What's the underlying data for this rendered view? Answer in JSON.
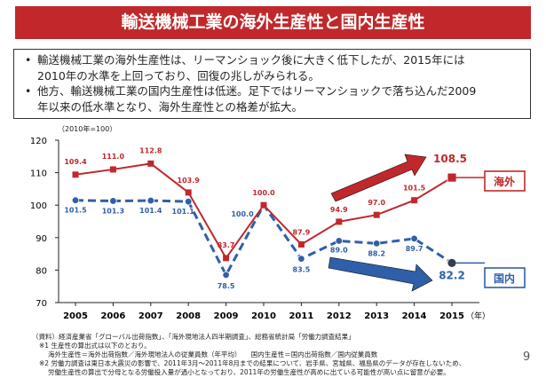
{
  "title": "輸送機械工業の海外生産性と国内生産性",
  "bullets": [
    {
      "line1": "輸送機械工業の海外生産性は、リーマンショック後に大きく低下したが、2015年には",
      "line2": "2010年の水準を上回っており、回復の兆しがみられる。"
    },
    {
      "line1": "他方、輸送機械工業の国内生産性は低迷。足下ではリーマンショックで落ち込んだ2009",
      "line2": "年以来の低水準となり、海外生産性との格差が拡大。"
    }
  ],
  "bullet_marker": "•",
  "unit_note": "（2010年=100）",
  "chart_data": {
    "type": "line",
    "x": [
      "2005",
      "2006",
      "2007",
      "2008",
      "2009",
      "2010",
      "2011",
      "2012",
      "2013",
      "2014",
      "2015"
    ],
    "x_suffix": "（年）",
    "ylim": [
      70,
      120
    ],
    "yticks": [
      "70",
      "80",
      "90",
      "100",
      "110",
      "120"
    ],
    "grid": false,
    "series": [
      {
        "name": "海外",
        "color": "#c0282b",
        "style": "solid",
        "values": [
          109.4,
          111.0,
          112.8,
          103.9,
          83.7,
          100.0,
          87.9,
          94.9,
          97.0,
          101.5,
          108.5
        ],
        "labels": [
          "109.4",
          "111.0",
          "112.8",
          "103.9",
          "83.7",
          "100.0",
          "87.9",
          "94.9",
          "97.0",
          "101.5",
          "108.5"
        ]
      },
      {
        "name": "国内",
        "color": "#2f5fa8",
        "style": "dashed",
        "values": [
          101.5,
          101.3,
          101.4,
          101.1,
          78.5,
          100.0,
          83.5,
          89.0,
          88.2,
          89.7,
          82.2
        ],
        "labels": [
          "101.5",
          "101.3",
          "101.4",
          "101.1",
          "78.5",
          "100.0",
          "83.5",
          "89.0",
          "88.2",
          "89.7",
          "82.2"
        ]
      }
    ]
  },
  "footnotes": [
    "（資料）経済産業省「グローバル出荷指数」、「海外現地法人四半期調査」、総務省統計局「労働力調査結果」",
    "※1 生産性の算出式は以下のとおり。",
    "海外生産性＝海外出荷指数／海外現地法人の従業員数（年平均）　　国内生産性＝国内出荷指数／国内従業員数",
    "※2 労働力調査は東日本大震災の影響で、2011年3月〜2011年8月までの結果について、岩手県、宮城県、福島県のデータが存在しないため、",
    "労働生産性の算出で分母となる労働投入量が過小となっており、2011年の労働生産性が高めに出ている可能性が高い点に留意が必要。"
  ],
  "page_number": "9",
  "colors": {
    "red": "#c0282b",
    "blue": "#2f5fa8"
  }
}
